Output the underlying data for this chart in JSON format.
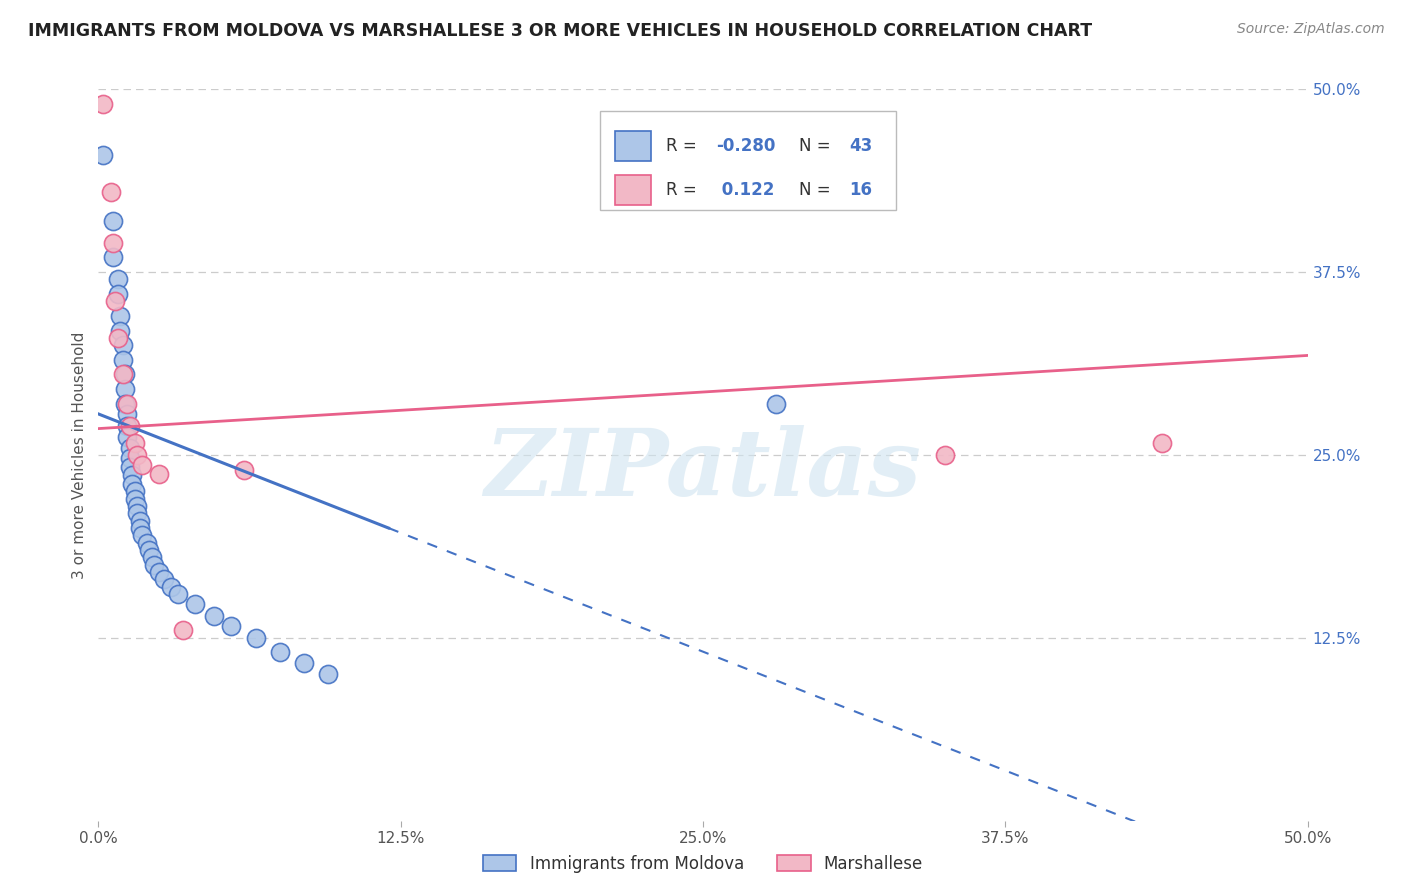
{
  "title": "IMMIGRANTS FROM MOLDOVA VS MARSHALLESE 3 OR MORE VEHICLES IN HOUSEHOLD CORRELATION CHART",
  "source": "Source: ZipAtlas.com",
  "ylabel": "3 or more Vehicles in Household",
  "xmin": 0.0,
  "xmax": 0.5,
  "ymin": 0.0,
  "ymax": 0.5,
  "xtick_labels": [
    "0.0%",
    "12.5%",
    "25.0%",
    "37.5%",
    "50.0%"
  ],
  "xtick_positions": [
    0.0,
    0.125,
    0.25,
    0.375,
    0.5
  ],
  "right_ytick_labels": [
    "50.0%",
    "37.5%",
    "25.0%",
    "12.5%"
  ],
  "right_ytick_positions": [
    0.5,
    0.375,
    0.25,
    0.125
  ],
  "blue_R": "-0.280",
  "blue_N": "43",
  "pink_R": "0.122",
  "pink_N": "16",
  "blue_fill": "#adc6e8",
  "blue_edge": "#4472c4",
  "pink_fill": "#f2b8c6",
  "pink_edge": "#e8608a",
  "watermark_text": "ZIPatlas",
  "blue_points": [
    [
      0.002,
      0.455
    ],
    [
      0.006,
      0.41
    ],
    [
      0.006,
      0.385
    ],
    [
      0.008,
      0.37
    ],
    [
      0.008,
      0.36
    ],
    [
      0.009,
      0.345
    ],
    [
      0.009,
      0.335
    ],
    [
      0.01,
      0.325
    ],
    [
      0.01,
      0.315
    ],
    [
      0.011,
      0.305
    ],
    [
      0.011,
      0.295
    ],
    [
      0.011,
      0.285
    ],
    [
      0.012,
      0.278
    ],
    [
      0.012,
      0.27
    ],
    [
      0.012,
      0.262
    ],
    [
      0.013,
      0.255
    ],
    [
      0.013,
      0.248
    ],
    [
      0.013,
      0.242
    ],
    [
      0.014,
      0.236
    ],
    [
      0.014,
      0.23
    ],
    [
      0.015,
      0.225
    ],
    [
      0.015,
      0.22
    ],
    [
      0.016,
      0.215
    ],
    [
      0.016,
      0.21
    ],
    [
      0.017,
      0.205
    ],
    [
      0.017,
      0.2
    ],
    [
      0.018,
      0.195
    ],
    [
      0.02,
      0.19
    ],
    [
      0.021,
      0.185
    ],
    [
      0.022,
      0.18
    ],
    [
      0.023,
      0.175
    ],
    [
      0.025,
      0.17
    ],
    [
      0.027,
      0.165
    ],
    [
      0.03,
      0.16
    ],
    [
      0.033,
      0.155
    ],
    [
      0.04,
      0.148
    ],
    [
      0.048,
      0.14
    ],
    [
      0.055,
      0.133
    ],
    [
      0.065,
      0.125
    ],
    [
      0.075,
      0.115
    ],
    [
      0.085,
      0.108
    ],
    [
      0.095,
      0.1
    ],
    [
      0.28,
      0.285
    ]
  ],
  "pink_points": [
    [
      0.002,
      0.49
    ],
    [
      0.005,
      0.43
    ],
    [
      0.006,
      0.395
    ],
    [
      0.007,
      0.355
    ],
    [
      0.008,
      0.33
    ],
    [
      0.01,
      0.305
    ],
    [
      0.012,
      0.285
    ],
    [
      0.013,
      0.27
    ],
    [
      0.015,
      0.258
    ],
    [
      0.016,
      0.25
    ],
    [
      0.018,
      0.243
    ],
    [
      0.025,
      0.237
    ],
    [
      0.035,
      0.13
    ],
    [
      0.06,
      0.24
    ],
    [
      0.35,
      0.25
    ],
    [
      0.44,
      0.258
    ]
  ],
  "blue_trend_x0": 0.0,
  "blue_trend_y0": 0.278,
  "blue_trend_x1": 0.12,
  "blue_trend_y1": 0.2,
  "blue_trend_dash_x0": 0.12,
  "blue_trend_dash_x1": 0.5,
  "pink_trend_x0": 0.0,
  "pink_trend_y0": 0.268,
  "pink_trend_x1": 0.5,
  "pink_trend_y1": 0.318,
  "legend_labels": [
    "Immigrants from Moldova",
    "Marshallese"
  ],
  "background_color": "#ffffff",
  "grid_color": "#cccccc"
}
